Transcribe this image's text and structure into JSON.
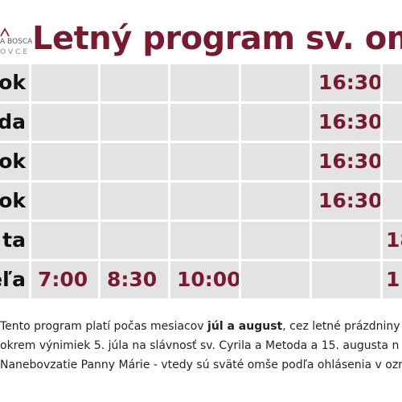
{
  "logo": {
    "text": "A BOSCA",
    "sub": "OVCE",
    "colors": {
      "mark": "#7a1a2e"
    }
  },
  "title": "Letný program  sv. om",
  "rows": [
    {
      "day": "ok",
      "cells": [
        "",
        "",
        "",
        "",
        "16:30",
        ""
      ]
    },
    {
      "day": "da",
      "cells": [
        "",
        "",
        "",
        "",
        "16:30",
        ""
      ]
    },
    {
      "day": "ok",
      "cells": [
        "",
        "",
        "",
        "",
        "16:30",
        ""
      ]
    },
    {
      "day": "ok",
      "cells": [
        "",
        "",
        "",
        "",
        "16:30",
        ""
      ]
    },
    {
      "day": "ta",
      "cells": [
        "",
        "",
        "",
        "",
        "",
        "18"
      ]
    },
    {
      "day": "eľa",
      "cells": [
        "7:00",
        "8:30",
        "10:00",
        "",
        "",
        "1"
      ]
    }
  ],
  "note": {
    "line1_before": "Tento program platí počas mesiacov ",
    "line1_bold": "júl a august",
    "line1_after": ", cez letné prázdniny",
    "line2": "okrem výnimiek 5. júla na slávnosť sv. Cyrila a Metoda a 15. augusta n",
    "line3": "Nanebovzatie Panny Márie - vtedy sú sväté omše podľa ohlásenia v ozna"
  },
  "colors": {
    "accent": "#7a1a2e",
    "cell_bg": "#e3e3e3",
    "text": "#111111"
  }
}
